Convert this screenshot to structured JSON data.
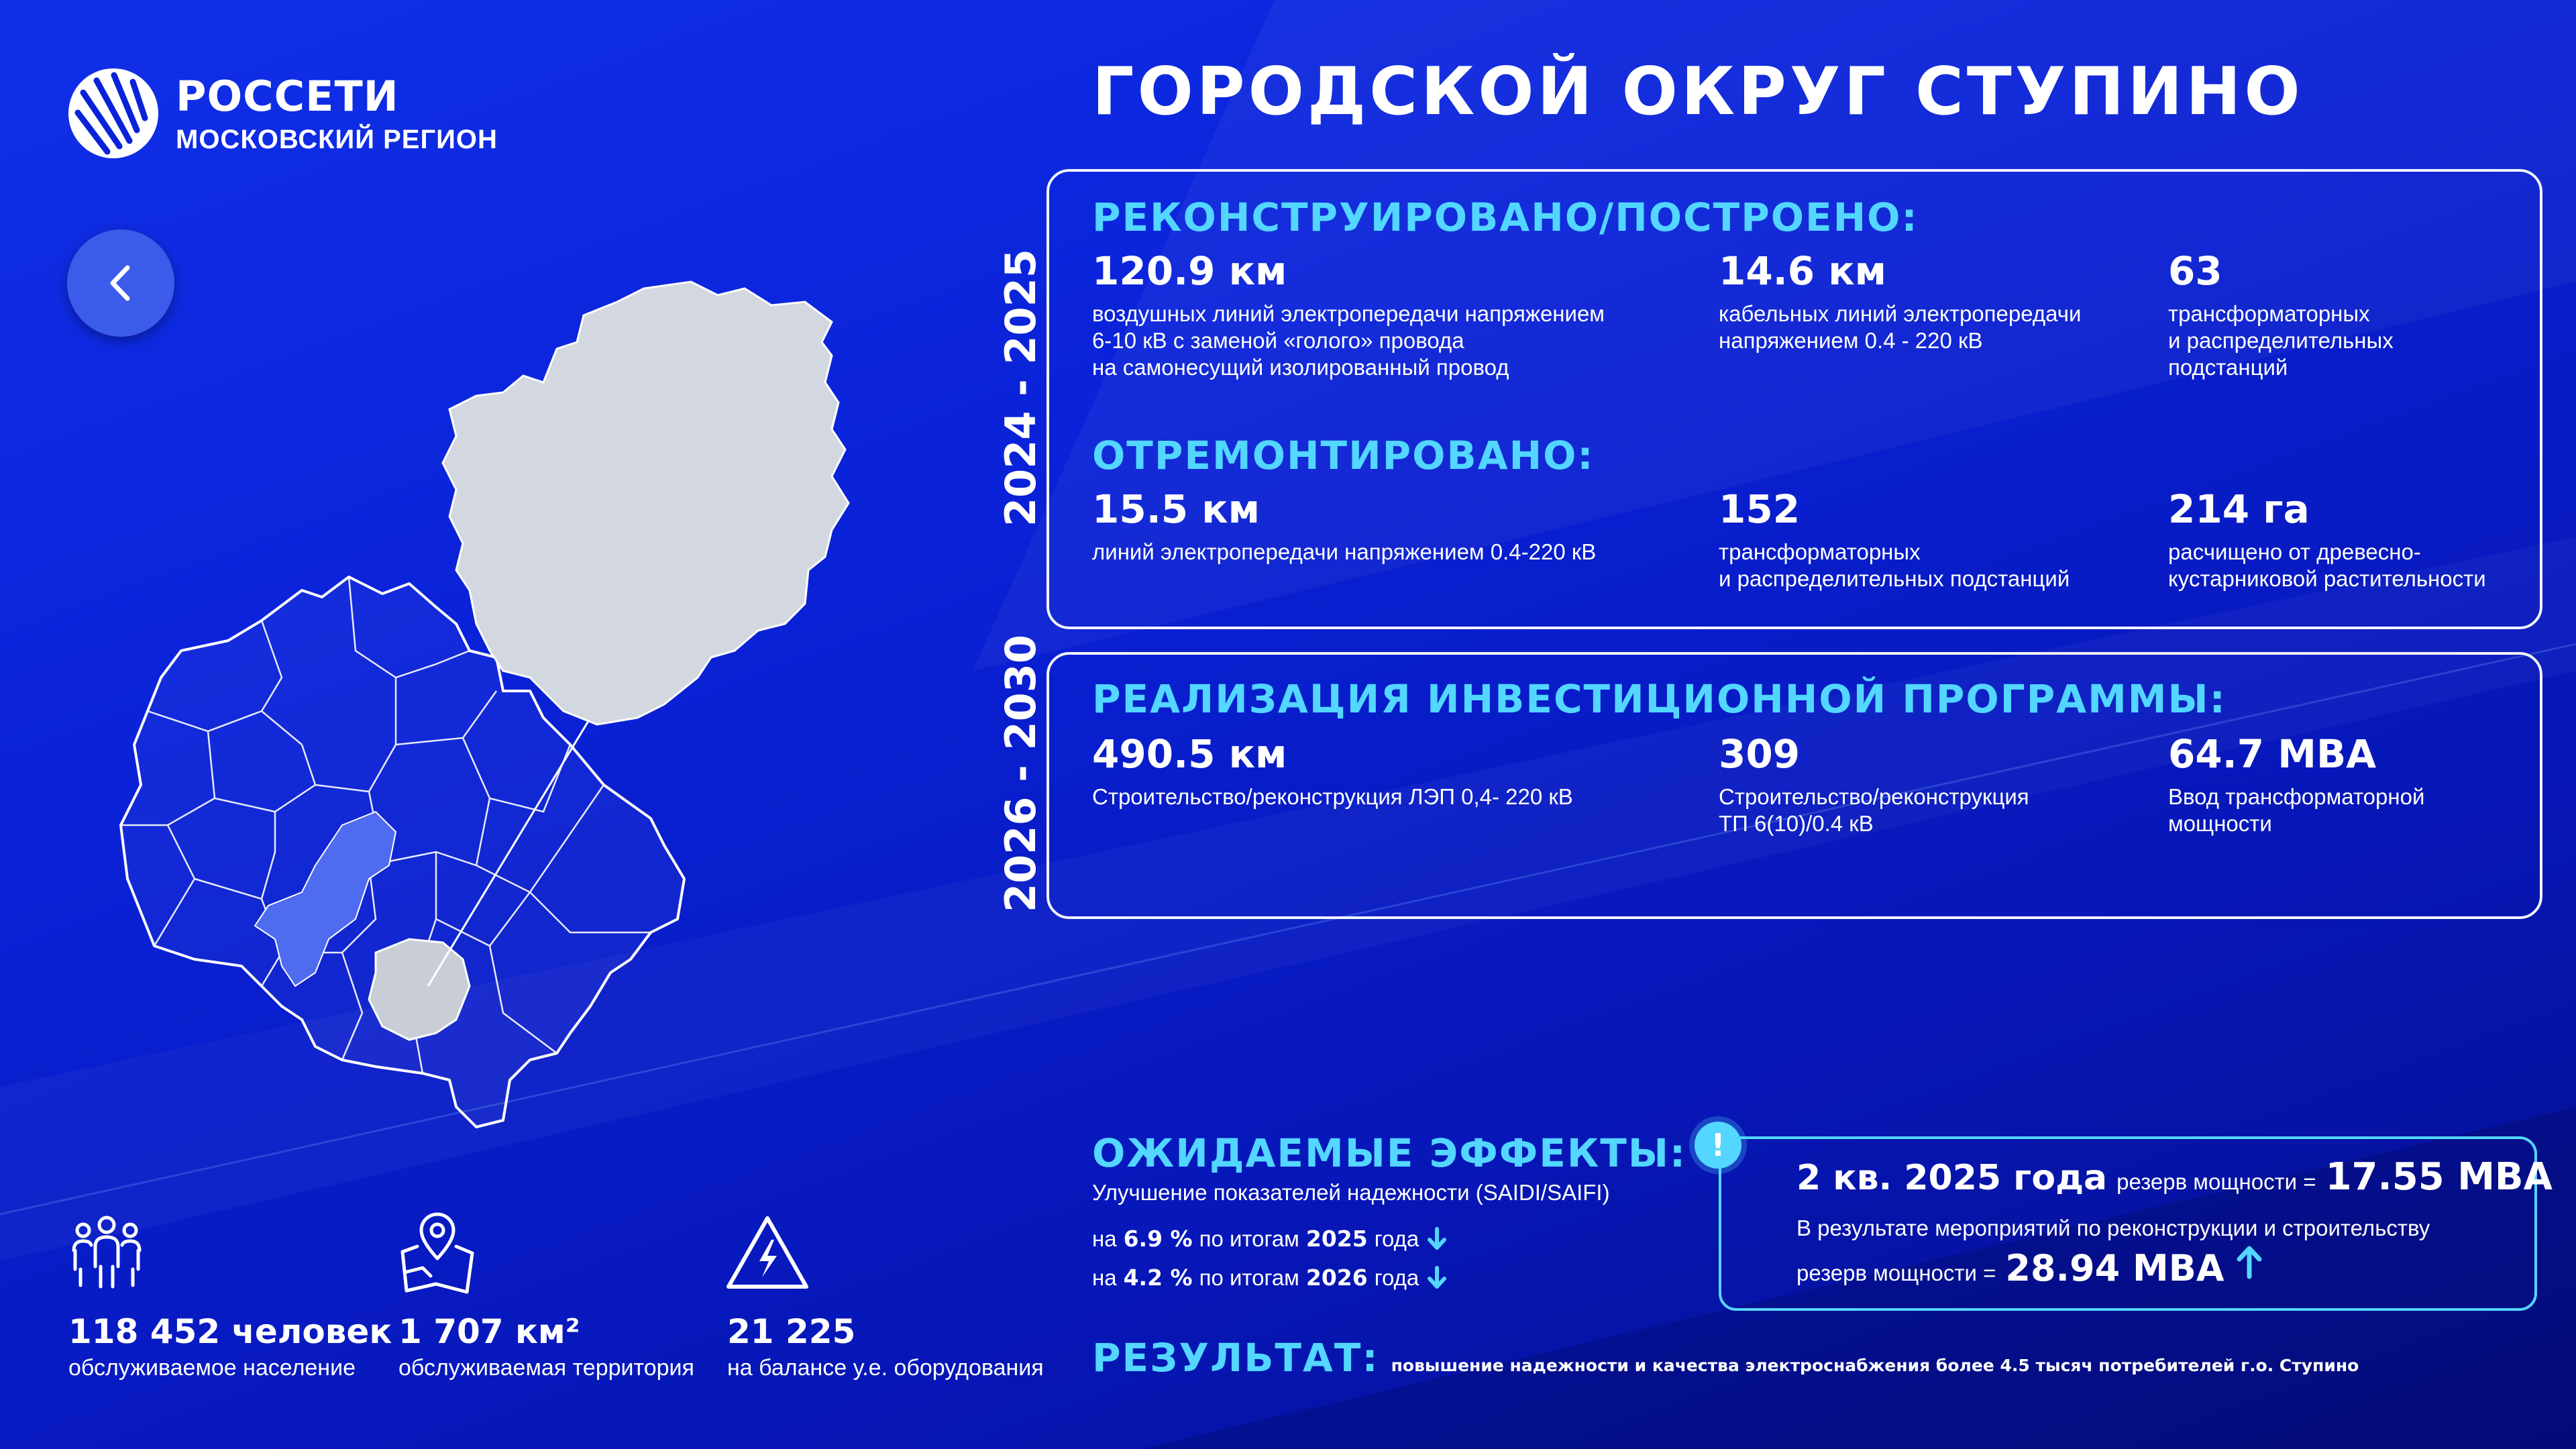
{
  "brand": {
    "name": "РОССЕТИ",
    "region": "МОСКОВСКИЙ РЕГИОН"
  },
  "page": {
    "title": "ГОРОДСКОЙ ОКРУГ СТУПИНО"
  },
  "nav": {
    "back_icon": "chevron-left-icon"
  },
  "period1": {
    "years": "2024 - 2025",
    "reconstructed": {
      "heading": "РЕКОНСТРУИРОВАНО/ПОСТРОЕНО:",
      "items": [
        {
          "value": "120.9 км",
          "desc": "воздушных линий электропередачи напряжением\n6-10 кВ с заменой «голого» провода\nна самонесущий изолированный провод"
        },
        {
          "value": "14.6 км",
          "desc": "кабельных линий электропередачи\nнапряжением 0.4 - 220 кВ"
        },
        {
          "value": "63",
          "desc": "трансформаторных\nи распределительных\nподстанций"
        }
      ]
    },
    "repaired": {
      "heading": "ОТРЕМОНТИРОВАНО:",
      "items": [
        {
          "value": "15.5 км",
          "desc": "линий электропередачи напряжением 0.4-220 кВ"
        },
        {
          "value": "152",
          "desc": "трансформаторных\nи распределительных подстанций"
        },
        {
          "value": "214 га",
          "desc": "расчищено от древесно-\nкустарниковой растительности"
        }
      ]
    }
  },
  "period2": {
    "years": "2026 - 2030",
    "heading": "РЕАЛИЗАЦИЯ ИНВЕСТИЦИОННОЙ ПРОГРАММЫ:",
    "items": [
      {
        "value": "490.5 км",
        "desc": "Строительство/реконструкция ЛЭП 0,4- 220 кВ"
      },
      {
        "value": "309",
        "desc": "Строительство/реконструкция\nТП 6(10)/0.4 кВ"
      },
      {
        "value": "64.7 МВА",
        "desc": "Ввод трансформаторной\nмощности"
      }
    ]
  },
  "effects": {
    "heading": "ОЖИДАЕМЫЕ ЭФФЕКТЫ:",
    "subtitle": "Улучшение показателей надежности (SAIDI/SAIFI)",
    "lines": [
      {
        "pre": "на",
        "pct": "6.9 %",
        "mid": "по итогам",
        "year": "2025",
        "post": "года"
      },
      {
        "pre": "на",
        "pct": "4.2 %",
        "mid": "по итогам",
        "year": "2026",
        "post": "года"
      }
    ],
    "arrow_icon": "arrow-down-icon"
  },
  "reserve": {
    "alert_icon": "exclamation-icon",
    "period": "2 кв. 2025 года",
    "label1": "резерв мощности =",
    "value1": "17.55 МВА",
    "note": "В результате мероприятий по реконструкции и строительству",
    "label2": "резерв мощности =",
    "value2": "28.94 МВА",
    "arrow_icon": "arrow-up-icon"
  },
  "result": {
    "label": "РЕЗУЛЬТАТ:",
    "text": "повышение надежности и качества электроснабжения более 4.5 тысяч потребителей г.о. Ступино"
  },
  "stats": [
    {
      "icon": "people-icon",
      "value": "118 452 человек",
      "desc": "обслуживаемое население"
    },
    {
      "icon": "map-pin-icon",
      "value": "1 707 км²",
      "desc": "обслуживаемая территория"
    },
    {
      "icon": "lightning-icon",
      "value": "21 225",
      "desc": "на балансе у.е. оборудования"
    }
  ],
  "colors": {
    "accent": "#53d6ff",
    "background": "#0a22d8",
    "map_fill": "#d3d8e0",
    "region_highlight": "#4f6cf0"
  }
}
